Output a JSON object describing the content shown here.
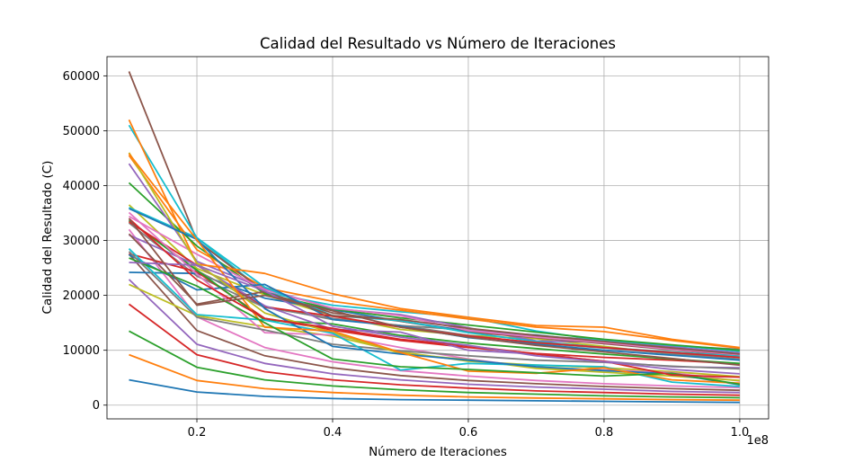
{
  "chart_data": {
    "type": "line",
    "title": "Calidad del Resultado vs Número de Iteraciones",
    "xlabel": "Número de Iteraciones",
    "ylabel": "Calidad del Resultado (C)",
    "x_offset_label": "1e8",
    "xlim": [
      0.0675,
      1.0425
    ],
    "ylim": [
      -2500,
      63500
    ],
    "x": [
      0.1,
      0.2,
      0.3,
      0.4,
      0.5,
      0.6,
      0.7,
      0.8,
      0.9,
      1.0
    ],
    "xticks": [
      {
        "value": 0.2,
        "label": "0.2"
      },
      {
        "value": 0.4,
        "label": "0.4"
      },
      {
        "value": 0.6,
        "label": "0.6"
      },
      {
        "value": 0.8,
        "label": "0.8"
      },
      {
        "value": 1.0,
        "label": "1.0"
      }
    ],
    "yticks": [
      {
        "value": 0,
        "label": "0"
      },
      {
        "value": 10000,
        "label": "10000"
      },
      {
        "value": 20000,
        "label": "20000"
      },
      {
        "value": 30000,
        "label": "30000"
      },
      {
        "value": 40000,
        "label": "40000"
      },
      {
        "value": 50000,
        "label": "50000"
      },
      {
        "value": 60000,
        "label": "60000"
      }
    ],
    "grid": true,
    "series": [
      {
        "color": "#1f77b4",
        "values": [
          4600,
          2400,
          1600,
          1200,
          1000,
          900,
          800,
          700,
          600,
          500
        ]
      },
      {
        "color": "#ff7f0e",
        "values": [
          9200,
          4500,
          3000,
          2300,
          1800,
          1500,
          1300,
          1150,
          1000,
          900
        ]
      },
      {
        "color": "#2ca02c",
        "values": [
          13500,
          6900,
          4600,
          3500,
          2800,
          2300,
          2000,
          1700,
          1500,
          1350
        ]
      },
      {
        "color": "#d62728",
        "values": [
          18400,
          9200,
          6100,
          4600,
          3700,
          3100,
          2600,
          2300,
          2000,
          1800
        ]
      },
      {
        "color": "#9467bd",
        "values": [
          22900,
          11100,
          7600,
          5700,
          4600,
          3800,
          3300,
          2900,
          2500,
          2300
        ]
      },
      {
        "color": "#8c564b",
        "values": [
          27500,
          13600,
          9000,
          6800,
          5400,
          4500,
          3900,
          3400,
          3000,
          2700
        ]
      },
      {
        "color": "#e377c2",
        "values": [
          32000,
          16100,
          10500,
          7900,
          6300,
          5300,
          4500,
          3900,
          3500,
          3200
        ]
      },
      {
        "color": "#7f7f7f",
        "values": [
          33200,
          23500,
          17800,
          15800,
          14500,
          13700,
          12600,
          11900,
          10800,
          10200
        ]
      },
      {
        "color": "#bcbd22",
        "values": [
          36500,
          24900,
          20100,
          16300,
          13800,
          12700,
          12100,
          10700,
          9300,
          8300
        ]
      },
      {
        "color": "#17becf",
        "values": [
          36000,
          30500,
          20600,
          18200,
          17000,
          16000,
          13500,
          11800,
          10900,
          9800
        ]
      },
      {
        "color": "#1f77b4",
        "values": [
          24200,
          24000,
          19500,
          17400,
          15300,
          13500,
          12800,
          11500,
          10500,
          9400
        ]
      },
      {
        "color": "#ff7f0e",
        "values": [
          45500,
          28300,
          21400,
          18900,
          17300,
          15700,
          14200,
          13400,
          11800,
          10400
        ]
      },
      {
        "color": "#2ca02c",
        "values": [
          40500,
          29000,
          20300,
          17500,
          15900,
          14600,
          13300,
          12000,
          11000,
          10000
        ]
      },
      {
        "color": "#d62728",
        "values": [
          27600,
          24300,
          15800,
          13700,
          11800,
          10500,
          9400,
          8700,
          8200,
          7500
        ]
      },
      {
        "color": "#9467bd",
        "values": [
          44000,
          26200,
          21200,
          17600,
          16500,
          14100,
          11700,
          11500,
          10600,
          9500
        ]
      },
      {
        "color": "#8c564b",
        "values": [
          60800,
          30000,
          20600,
          16800,
          15300,
          13300,
          12300,
          11200,
          10100,
          9000
        ]
      },
      {
        "color": "#e377c2",
        "values": [
          34400,
          27500,
          21000,
          17700,
          16300,
          13600,
          12400,
          11400,
          10200,
          9200
        ]
      },
      {
        "color": "#7f7f7f",
        "values": [
          33700,
          24500,
          18000,
          15600,
          14500,
          12700,
          11300,
          10400,
          9400,
          8400
        ]
      },
      {
        "color": "#bcbd22",
        "values": [
          22000,
          16300,
          14300,
          12600,
          9700,
          8000,
          7300,
          6800,
          6100,
          5200
        ]
      },
      {
        "color": "#17becf",
        "values": [
          51000,
          30500,
          21500,
          16300,
          15400,
          13200,
          11600,
          10500,
          9700,
          8900
        ]
      },
      {
        "color": "#1f77b4",
        "values": [
          27400,
          21000,
          22000,
          15600,
          14400,
          12300,
          11100,
          10000,
          9100,
          8200
        ]
      },
      {
        "color": "#ff7f0e",
        "values": [
          52000,
          25700,
          24000,
          20300,
          17600,
          16000,
          14500,
          14200,
          12000,
          10500
        ]
      },
      {
        "color": "#2ca02c",
        "values": [
          33600,
          24600,
          15500,
          14800,
          12700,
          11300,
          10300,
          9300,
          8400,
          7600
        ]
      },
      {
        "color": "#d62728",
        "values": [
          33400,
          25500,
          17900,
          16200,
          14200,
          12600,
          11400,
          10500,
          9600,
          8700
        ]
      },
      {
        "color": "#9467bd",
        "values": [
          31000,
          25500,
          18100,
          13800,
          13300,
          10000,
          9300,
          8000,
          7000,
          6800
        ]
      },
      {
        "color": "#8c564b",
        "values": [
          31200,
          18400,
          20700,
          16300,
          15600,
          14000,
          12700,
          11600,
          10400,
          9300
        ]
      },
      {
        "color": "#e377c2",
        "values": [
          35100,
          23900,
          13200,
          12800,
          10500,
          8400,
          6800,
          6400,
          5900,
          4400
        ]
      },
      {
        "color": "#7f7f7f",
        "values": [
          28000,
          16000,
          13700,
          11100,
          9900,
          9000,
          8200,
          7800,
          7100,
          6600
        ]
      },
      {
        "color": "#bcbd22",
        "values": [
          46000,
          25900,
          16800,
          13200,
          9400,
          8300,
          6700,
          6000,
          5300,
          4500
        ]
      },
      {
        "color": "#17becf",
        "values": [
          28500,
          16500,
          15500,
          13100,
          6400,
          7600,
          7300,
          7000,
          4200,
          3400
        ]
      },
      {
        "color": "#1f77b4",
        "values": [
          35800,
          30200,
          17600,
          10700,
          9300,
          8200,
          7000,
          6300,
          5700,
          3700
        ]
      },
      {
        "color": "#ff7f0e",
        "values": [
          45800,
          30100,
          14200,
          13500,
          9600,
          6200,
          5800,
          6800,
          4600,
          4000
        ]
      },
      {
        "color": "#2ca02c",
        "values": [
          26800,
          21700,
          15000,
          8400,
          7000,
          6500,
          5900,
          5300,
          5800,
          3800
        ]
      },
      {
        "color": "#d62728",
        "values": [
          34000,
          22800,
          15800,
          14000,
          12000,
          10800,
          9300,
          8000,
          5500,
          5100
        ]
      },
      {
        "color": "#9467bd",
        "values": [
          26000,
          25500,
          20800,
          14400,
          12400,
          10900,
          9000,
          7900,
          6500,
          5700
        ]
      },
      {
        "color": "#8c564b",
        "values": [
          34000,
          18200,
          20000,
          17200,
          14200,
          12400,
          10900,
          9700,
          8500,
          7300
        ]
      }
    ]
  }
}
